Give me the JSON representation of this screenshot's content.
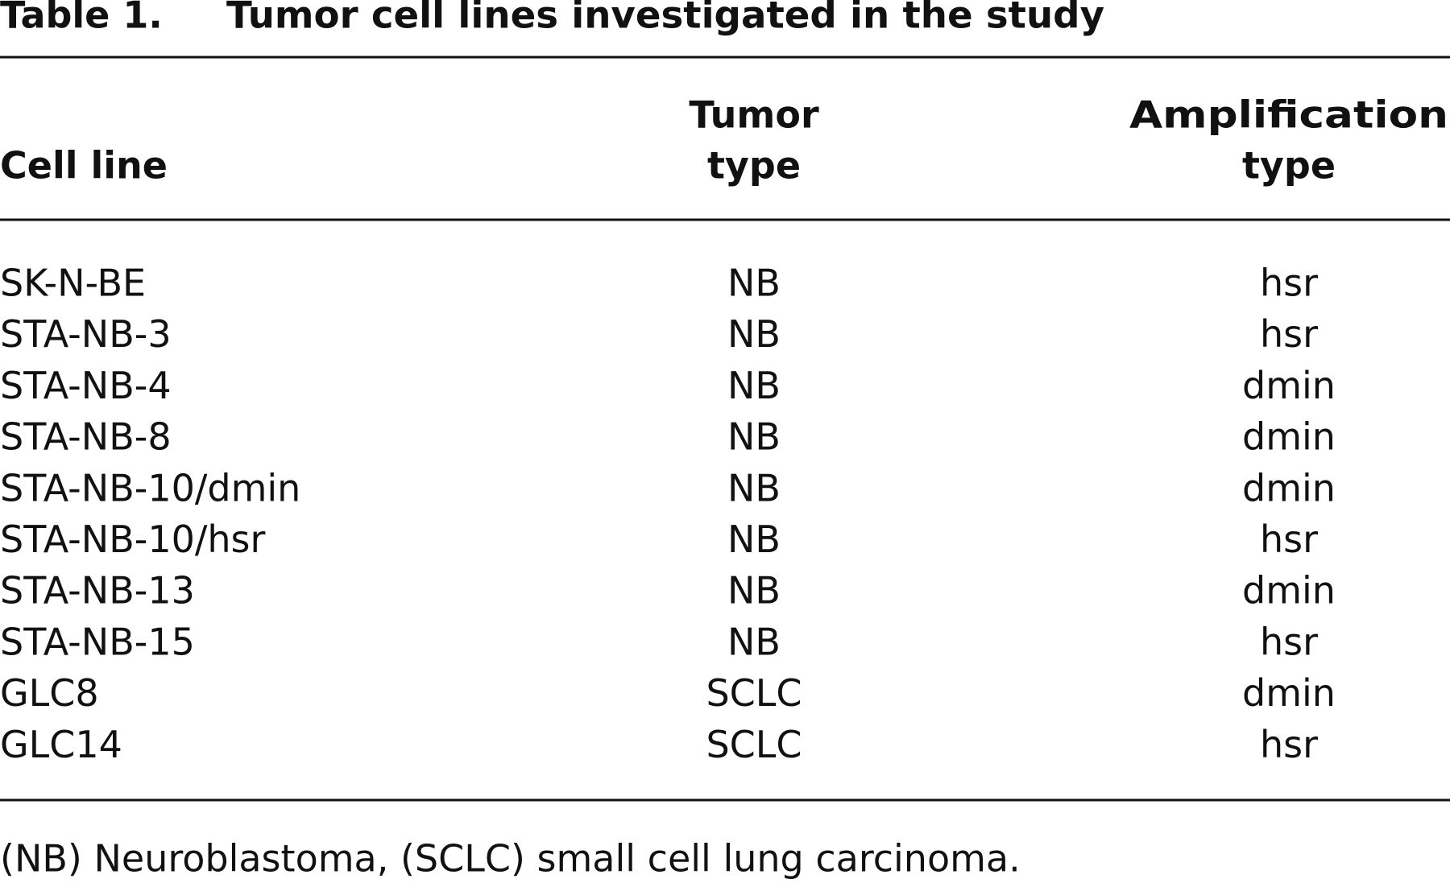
{
  "title": {
    "label": "Table 1.",
    "text": "Tumor cell lines investigated in the study"
  },
  "table": {
    "header": [
      [
        "Cell line"
      ],
      [
        "Tumor",
        "type"
      ],
      [
        "Amplification",
        "type"
      ]
    ],
    "rows": [
      [
        "SK-N-BE",
        "NB",
        "hsr"
      ],
      [
        "STA-NB-3",
        "NB",
        "hsr"
      ],
      [
        "STA-NB-4",
        "NB",
        "dmin"
      ],
      [
        "STA-NB-8",
        "NB",
        "dmin"
      ],
      [
        "STA-NB-10/dmin",
        "NB",
        "dmin"
      ],
      [
        "STA-NB-10/hsr",
        "NB",
        "hsr"
      ],
      [
        "STA-NB-13",
        "NB",
        "dmin"
      ],
      [
        "STA-NB-15",
        "NB",
        "hsr"
      ],
      [
        "GLC8",
        "SCLC",
        "dmin"
      ],
      [
        "GLC14",
        "SCLC",
        "hsr"
      ]
    ]
  },
  "footnote": "(NB) Neuroblastoma, (SCLC) small cell lung carcinoma."
}
